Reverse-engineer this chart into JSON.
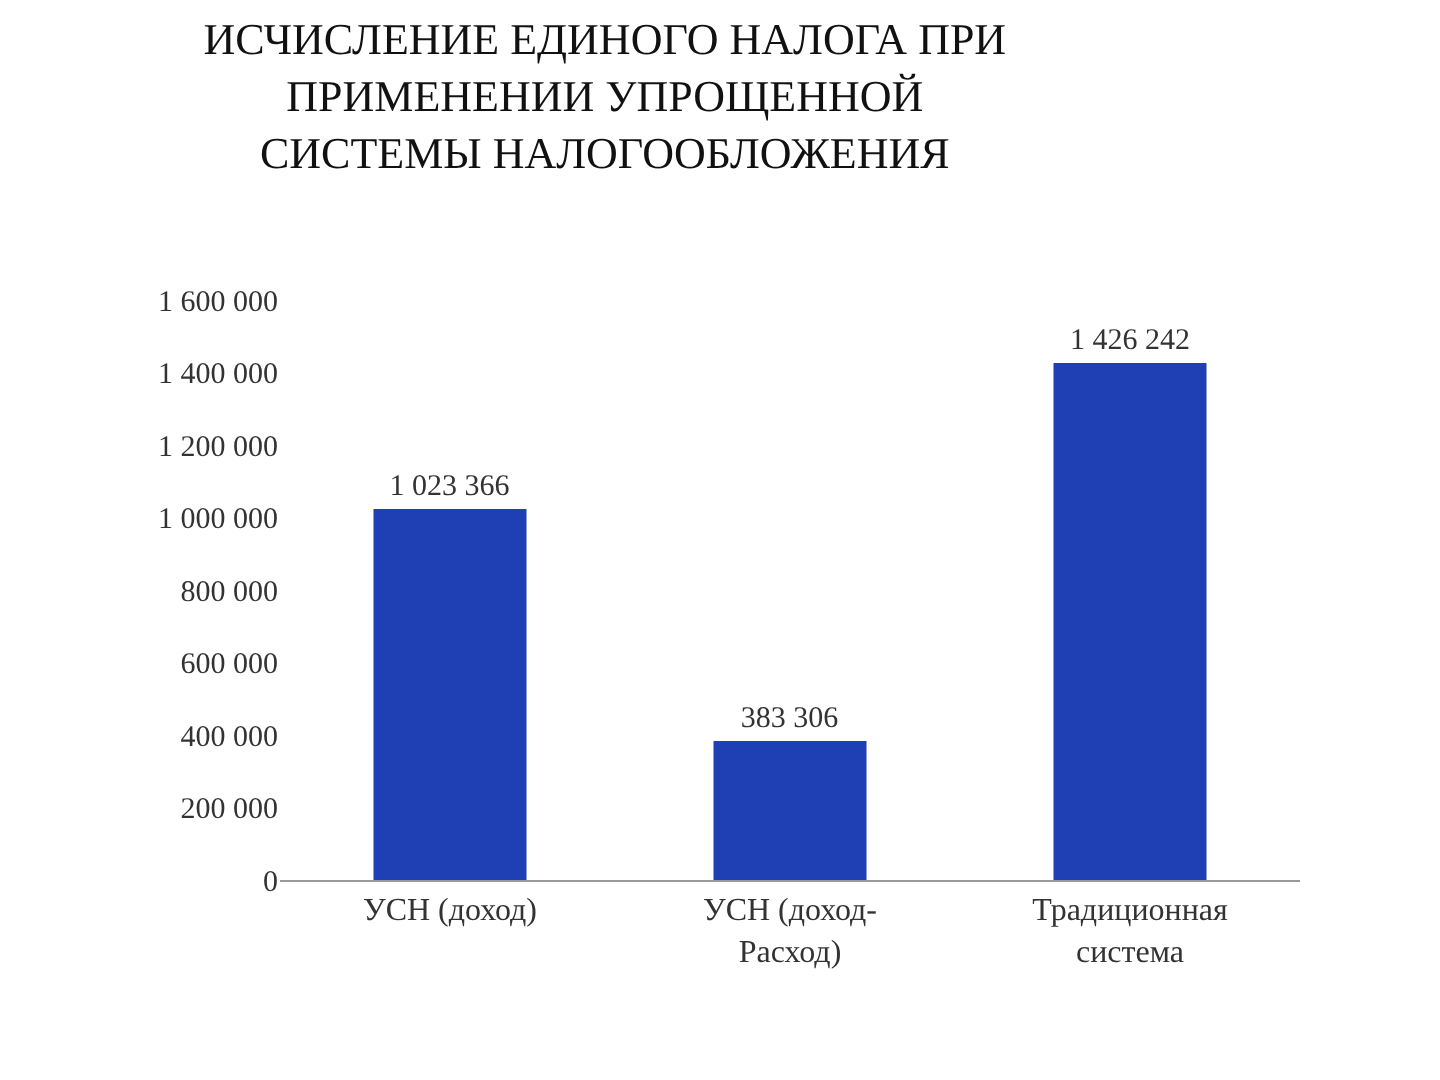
{
  "chart_data": {
    "type": "bar",
    "title": "ИСЧИСЛЕНИЕ ЕДИНОГО НАЛОГА ПРИ\nПРИМЕНЕНИИ УПРОЩЕННОЙ\nСИСТЕМЫ НАЛОГООБЛОЖЕНИЯ",
    "categories": [
      "УСН (доход)",
      "УСН (доход-\nРасход)",
      "Традиционная\nсистема"
    ],
    "values": [
      1023366,
      383306,
      1426242
    ],
    "value_labels": [
      "1 023 366",
      "383 306",
      "1 426 242"
    ],
    "color": "#1f3fb4",
    "ylim": [
      0,
      1600000
    ],
    "yticks": [
      {
        "value": 0,
        "label": "0"
      },
      {
        "value": 200000,
        "label": "200 000"
      },
      {
        "value": 400000,
        "label": "400 000"
      },
      {
        "value": 600000,
        "label": "600 000"
      },
      {
        "value": 800000,
        "label": "800 000"
      },
      {
        "value": 1000000,
        "label": "1 000 000"
      },
      {
        "value": 1200000,
        "label": "1 200 000"
      },
      {
        "value": 1400000,
        "label": "1 400 000"
      },
      {
        "value": 1600000,
        "label": "1 600 000"
      }
    ]
  }
}
